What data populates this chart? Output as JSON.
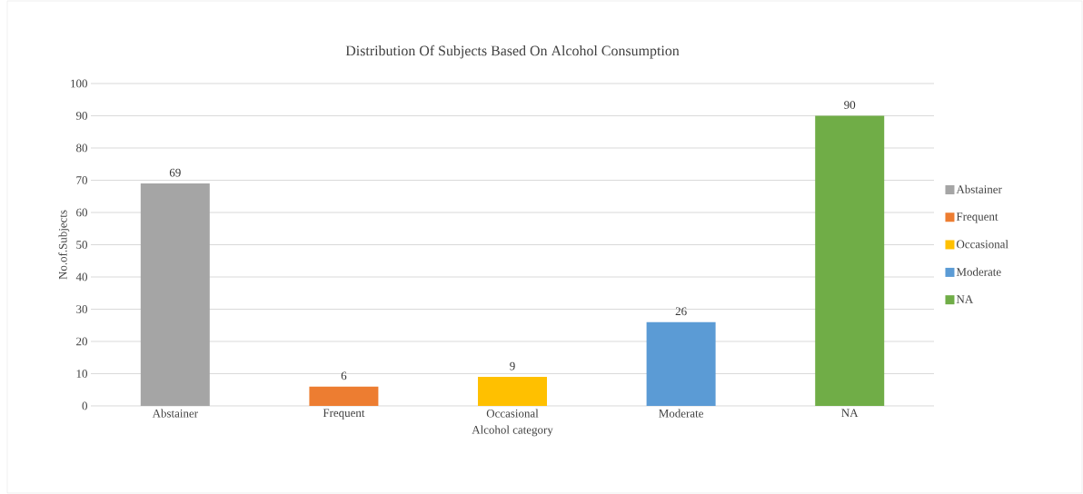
{
  "chart_data": {
    "type": "bar",
    "title": "Distribution Of Subjects Based On Alcohol Consumption",
    "xlabel": "Alcohol category",
    "ylabel": "No.of.Subjects",
    "categories": [
      "Abstainer",
      "Frequent",
      "Occasional",
      "Moderate",
      "NA"
    ],
    "series": [
      {
        "name": "Abstainer",
        "color": "#a5a5a5",
        "values": [
          69,
          null,
          null,
          null,
          null
        ]
      },
      {
        "name": "Frequent",
        "color": "#ed7d31",
        "values": [
          null,
          6,
          null,
          null,
          null
        ]
      },
      {
        "name": "Occasional",
        "color": "#ffc000",
        "values": [
          null,
          null,
          9,
          null,
          null
        ]
      },
      {
        "name": "Moderate",
        "color": "#5b9bd5",
        "values": [
          null,
          null,
          null,
          26,
          null
        ]
      },
      {
        "name": "NA",
        "color": "#70ad47",
        "values": [
          null,
          null,
          null,
          null,
          90
        ]
      }
    ],
    "ylim": [
      0,
      100
    ],
    "yticks": [
      0,
      10,
      20,
      30,
      40,
      50,
      60,
      70,
      80,
      90,
      100
    ],
    "grid": "y",
    "legend": "right",
    "data_labels": true
  }
}
